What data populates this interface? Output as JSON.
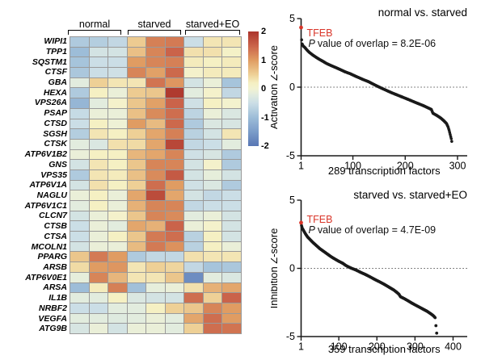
{
  "figure_type": "lysosome-autophagy gene expression figure",
  "chart_data": [
    {
      "type": "heatmap",
      "groups": [
        "normal",
        "starved",
        "starved+EO"
      ],
      "genes": [
        "WIPI1",
        "TPP1",
        "SQSTM1",
        "CTSF",
        "GBA",
        "HEXA",
        "VPS26A",
        "PSAP",
        "CTSD",
        "SGSH",
        "CTSK",
        "ATP6V1B2",
        "GNS",
        "VPS35",
        "ATP6V1A",
        "NAGLU",
        "ATP6V1C1",
        "CLCN7",
        "CTSB",
        "CTSA",
        "MCOLN1",
        "PPARG",
        "ARSB",
        "ATP6V0E1",
        "ARSA",
        "IL1B",
        "NRBF2",
        "VEGFA",
        "ATG9B"
      ],
      "values": [
        [
          -0.8,
          -0.75,
          -0.6,
          0.55,
          1.25,
          1.3,
          -0.5,
          0.3,
          0.3
        ],
        [
          -1.0,
          -0.4,
          -0.4,
          0.65,
          1.2,
          1.5,
          0.35,
          0.35,
          0.15
        ],
        [
          -0.9,
          -0.5,
          -0.5,
          1.0,
          1.2,
          1.25,
          0.25,
          0.2,
          0.25
        ],
        [
          -0.85,
          -0.5,
          -0.45,
          1.2,
          0.95,
          1.45,
          0.1,
          0.25,
          0.25
        ],
        [
          -0.2,
          0.5,
          0.3,
          0.3,
          1.35,
          1.05,
          -0.4,
          -0.1,
          -0.9
        ],
        [
          -0.8,
          0.2,
          -0.1,
          0.55,
          0.6,
          1.95,
          -0.2,
          0.1,
          -0.6
        ],
        [
          -1.1,
          -0.2,
          0.1,
          0.6,
          0.95,
          1.5,
          -0.45,
          0.2,
          0.05
        ],
        [
          -0.55,
          -0.1,
          -0.1,
          0.65,
          1.15,
          1.4,
          -0.65,
          -0.1,
          -0.3
        ],
        [
          -0.5,
          0.2,
          -0.05,
          1.0,
          0.7,
          1.45,
          -0.8,
          -0.3,
          -0.35
        ],
        [
          -0.75,
          0.3,
          0.2,
          0.5,
          0.9,
          1.25,
          -0.7,
          -0.4,
          0.3
        ],
        [
          -0.2,
          -0.3,
          0.35,
          0.4,
          0.9,
          1.8,
          -0.6,
          -0.5,
          -0.2
        ],
        [
          -0.1,
          0.2,
          0.2,
          0.75,
          0.9,
          1.2,
          -0.45,
          -0.35,
          -0.8
        ],
        [
          -0.4,
          0.3,
          0.2,
          0.6,
          1.2,
          1.2,
          -0.4,
          0.1,
          -0.8
        ],
        [
          -0.8,
          0.3,
          0.25,
          0.65,
          1.15,
          1.6,
          -0.4,
          -0.15,
          -0.4
        ],
        [
          -0.4,
          0.35,
          0.2,
          0.5,
          1.4,
          1.0,
          -0.45,
          -0.3,
          -0.8
        ],
        [
          -0.1,
          0.2,
          -0.1,
          0.9,
          1.75,
          0.9,
          -0.4,
          -0.6,
          -0.5
        ],
        [
          -0.2,
          0.2,
          -0.1,
          0.8,
          1.2,
          1.2,
          -0.6,
          -0.5,
          -0.5
        ],
        [
          -0.4,
          -0.1,
          0.1,
          0.6,
          1.2,
          1.15,
          -0.2,
          -0.1,
          -0.4
        ],
        [
          -0.5,
          -0.1,
          -0.2,
          0.9,
          0.8,
          1.5,
          -0.1,
          0.1,
          -0.4
        ],
        [
          -0.5,
          -0.1,
          0.2,
          0.6,
          1.3,
          1.4,
          -0.7,
          0.2,
          -0.4
        ],
        [
          -0.4,
          -0.1,
          -0.1,
          0.7,
          1.3,
          1.1,
          -0.7,
          0.2,
          -0.1
        ],
        [
          0.6,
          1.3,
          1.0,
          -0.8,
          -0.6,
          -0.6,
          0.35,
          0.3,
          0.3
        ],
        [
          0.4,
          1.0,
          1.05,
          0.3,
          0.5,
          0.45,
          -0.6,
          -0.9,
          -0.85
        ],
        [
          -0.15,
          1.2,
          0.75,
          0.3,
          0.3,
          0.6,
          -1.7,
          -0.2,
          -0.3
        ],
        [
          -1.0,
          0.25,
          1.25,
          -0.95,
          -0.15,
          -0.1,
          0.35,
          0.8,
          0.9
        ],
        [
          -0.2,
          -0.2,
          0.2,
          -0.3,
          -0.4,
          -0.4,
          1.4,
          0.5,
          1.5
        ],
        [
          -0.5,
          -0.5,
          -0.2,
          -0.2,
          0.2,
          0.5,
          0.6,
          1.2,
          1.0
        ],
        [
          -0.2,
          -0.2,
          -0.25,
          -0.2,
          -0.1,
          -0.2,
          0.9,
          1.4,
          1.0
        ],
        [
          -0.35,
          -0.1,
          -0.4,
          -0.1,
          -0.1,
          -0.2,
          0.5,
          1.4,
          1.35
        ]
      ],
      "colorbar": {
        "ticks": [
          "2",
          "1",
          "0",
          "-1",
          "-2"
        ],
        "zmin": -2,
        "zmax": 2
      },
      "colormap_stops": [
        [
          2.0,
          "#ac352c"
        ],
        [
          1.5,
          "#ca634a"
        ],
        [
          1.0,
          "#e09c62"
        ],
        [
          0.5,
          "#eed096"
        ],
        [
          0.2,
          "#f5f0c3"
        ],
        [
          0.0,
          "#f2f2d2"
        ],
        [
          -0.2,
          "#e2ecde"
        ],
        [
          -0.5,
          "#cbdee6"
        ],
        [
          -1.0,
          "#9dbdd8"
        ],
        [
          -1.5,
          "#7b9cc9"
        ],
        [
          -2.0,
          "#5877b4"
        ]
      ],
      "grid_line_color": "#9a9a9a"
    },
    {
      "type": "scatter",
      "title": "normal vs. starved",
      "ylabel": "Activation Z-score",
      "xlabel": "289 transcription factors",
      "n_factors": 289,
      "xticks": [
        1,
        100,
        200,
        300
      ],
      "yticks": [
        5,
        0,
        -5
      ],
      "xlim": [
        1,
        300
      ],
      "ylim": [
        -5,
        5
      ],
      "zero_line": true,
      "point_color": "#1a1a1a",
      "highlight": {
        "label": "TFEB",
        "rank": 1,
        "z": 4.35,
        "color": "#d93529"
      },
      "p_italic": "P",
      "p_rest": "value of overlap = 8.2E-06",
      "anchors": [
        [
          1,
          4.35
        ],
        [
          2,
          3.45
        ],
        [
          3,
          3.15
        ],
        [
          5,
          3.0
        ],
        [
          8,
          2.9
        ],
        [
          12,
          2.72
        ],
        [
          16,
          2.56
        ],
        [
          22,
          2.38
        ],
        [
          28,
          2.22
        ],
        [
          35,
          2.05
        ],
        [
          42,
          1.9
        ],
        [
          50,
          1.72
        ],
        [
          58,
          1.58
        ],
        [
          66,
          1.45
        ],
        [
          75,
          1.3
        ],
        [
          85,
          1.12
        ],
        [
          95,
          0.98
        ],
        [
          105,
          0.8
        ],
        [
          120,
          0.55
        ],
        [
          130,
          0.4
        ],
        [
          140,
          0.2
        ],
        [
          148,
          0.05
        ],
        [
          155,
          -0.08
        ],
        [
          165,
          -0.25
        ],
        [
          175,
          -0.42
        ],
        [
          190,
          -0.65
        ],
        [
          205,
          -0.88
        ],
        [
          220,
          -1.12
        ],
        [
          235,
          -1.35
        ],
        [
          246,
          -1.55
        ],
        [
          250,
          -1.62
        ],
        [
          253,
          -1.9
        ],
        [
          260,
          -2.05
        ],
        [
          268,
          -2.25
        ],
        [
          274,
          -2.45
        ],
        [
          279,
          -2.65
        ],
        [
          282,
          -2.9
        ],
        [
          284,
          -3.15
        ],
        [
          286,
          -3.45
        ],
        [
          288,
          -3.75
        ],
        [
          289,
          -3.95
        ]
      ],
      "outliers": []
    },
    {
      "type": "scatter",
      "title": "starved vs. starved+EO",
      "ylabel": "Inhibition Z-score",
      "xlabel": "359 transcription factors",
      "n_factors": 359,
      "xticks": [
        1,
        100,
        200,
        300,
        400
      ],
      "yticks": [
        5,
        0,
        -5
      ],
      "xlim": [
        1,
        400
      ],
      "ylim": [
        -5,
        5
      ],
      "zero_line": true,
      "point_color": "#1a1a1a",
      "highlight": {
        "label": "TFEB",
        "rank": 1,
        "z": 3.35,
        "color": "#d93529"
      },
      "p_italic": "P",
      "p_rest": "value of overlap = 4.7E-09",
      "anchors": [
        [
          1,
          3.35
        ],
        [
          2,
          3.15
        ],
        [
          4,
          2.95
        ],
        [
          7,
          2.8
        ],
        [
          12,
          2.55
        ],
        [
          18,
          2.3
        ],
        [
          25,
          2.1
        ],
        [
          32,
          1.9
        ],
        [
          40,
          1.7
        ],
        [
          50,
          1.45
        ],
        [
          60,
          1.25
        ],
        [
          70,
          1.05
        ],
        [
          80,
          0.85
        ],
        [
          90,
          0.68
        ],
        [
          100,
          0.52
        ],
        [
          110,
          0.38
        ],
        [
          118,
          0.22
        ],
        [
          126,
          0.1
        ],
        [
          134,
          0.0
        ],
        [
          145,
          -0.12
        ],
        [
          158,
          -0.3
        ],
        [
          170,
          -0.45
        ],
        [
          182,
          -0.62
        ],
        [
          195,
          -0.82
        ],
        [
          208,
          -1.0
        ],
        [
          220,
          -1.18
        ],
        [
          232,
          -1.38
        ],
        [
          244,
          -1.58
        ],
        [
          252,
          -1.75
        ],
        [
          258,
          -1.9
        ],
        [
          262,
          -2.08
        ],
        [
          272,
          -2.22
        ],
        [
          282,
          -2.38
        ],
        [
          292,
          -2.55
        ],
        [
          302,
          -2.7
        ],
        [
          312,
          -2.85
        ],
        [
          322,
          -3.0
        ],
        [
          332,
          -3.15
        ],
        [
          340,
          -3.3
        ],
        [
          346,
          -3.42
        ],
        [
          350,
          -3.52
        ],
        [
          353,
          -3.62
        ]
      ],
      "outliers": [
        [
          355,
          -4.2
        ],
        [
          357,
          -4.75
        ]
      ]
    }
  ]
}
